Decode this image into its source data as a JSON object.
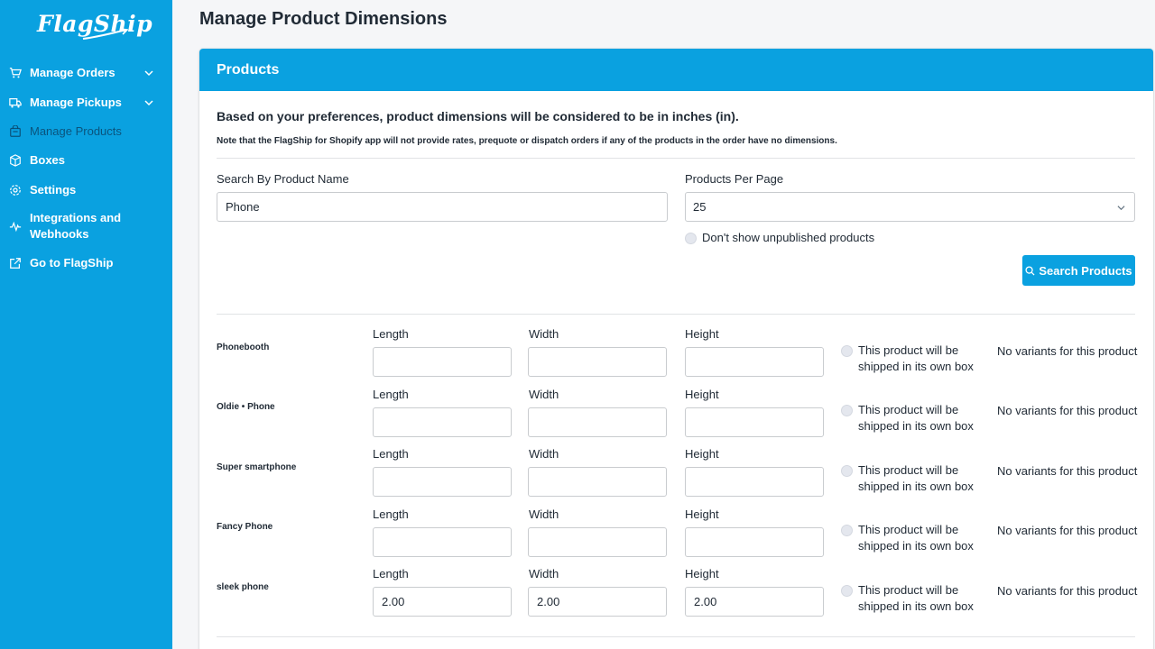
{
  "sidebar": {
    "logo": "FlagShip",
    "items": [
      {
        "label": "Manage Orders",
        "icon": "cart-icon",
        "chevron": true
      },
      {
        "label": "Manage Pickups",
        "icon": "truck-icon",
        "chevron": true
      },
      {
        "label": "Manage Products",
        "icon": "bag-icon",
        "active": true
      },
      {
        "label": "Boxes",
        "icon": "box-icon"
      },
      {
        "label": "Settings",
        "icon": "gear-icon"
      },
      {
        "label": "Integrations and Webhooks",
        "icon": "pulse-icon"
      },
      {
        "label": "Go to FlagShip",
        "icon": "external-link-icon"
      }
    ]
  },
  "page": {
    "title": "Manage Product Dimensions"
  },
  "card": {
    "header": "Products",
    "info": "Based on your preferences, product dimensions will be considered to be in inches (in).",
    "note": "Note that the FlagShip for Shopify app will not provide rates, prequote or dispatch orders if any of the products in the order have no dimensions."
  },
  "search": {
    "label": "Search By Product Name",
    "value": "Phone",
    "per_page_label": "Products Per Page",
    "per_page_value": "25",
    "unpublished_label": "Don't show unpublished products",
    "button_label": "Search Products"
  },
  "dimension_labels": {
    "length": "Length",
    "width": "Width",
    "height": "Height"
  },
  "own_box_label": "This product will be shipped in its own box",
  "no_variants_label": "No variants for this product",
  "products": [
    {
      "name": "Phonebooth",
      "length": "",
      "width": "",
      "height": ""
    },
    {
      "name": "Oldie • Phone",
      "length": "",
      "width": "",
      "height": ""
    },
    {
      "name": "Super smartphone",
      "length": "",
      "width": "",
      "height": ""
    },
    {
      "name": "Fancy Phone",
      "length": "",
      "width": "",
      "height": ""
    },
    {
      "name": "sleek phone",
      "length": "2.00",
      "width": "2.00",
      "height": "2.00"
    }
  ],
  "colors": {
    "brand": "#0aa1e0",
    "text": "#212b36",
    "border": "#c9cccf"
  }
}
